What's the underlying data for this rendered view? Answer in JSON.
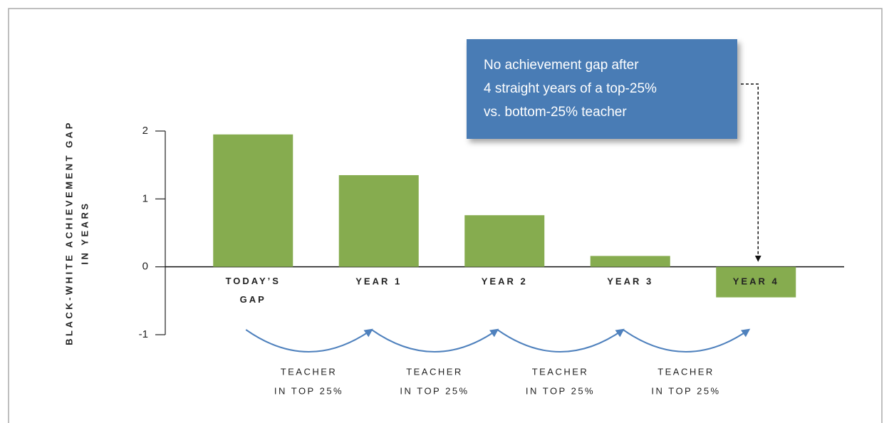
{
  "chart_data": {
    "type": "bar",
    "ylabel": [
      "BLACK-WHITE ACHIEVEMENT GAP",
      "IN YEARS"
    ],
    "categories": [
      "TODAY’S GAP",
      "YEAR 1",
      "YEAR 2",
      "YEAR 3",
      "YEAR 4"
    ],
    "values": [
      1.95,
      1.35,
      0.76,
      0.16,
      -0.45
    ],
    "color": "#86ac4f",
    "ylim": [
      -1,
      2
    ],
    "yticks": [
      -1,
      0,
      1,
      2
    ],
    "annotation": [
      "No achievement gap after",
      "4 straight years of a top-25%",
      "vs. bottom-25% teacher"
    ],
    "transitions": [
      [
        "TEACHER",
        "IN TOP 25%"
      ],
      [
        "TEACHER",
        "IN TOP 25%"
      ],
      [
        "TEACHER",
        "IN TOP 25%"
      ],
      [
        "TEACHER",
        "IN TOP 25%"
      ]
    ]
  }
}
